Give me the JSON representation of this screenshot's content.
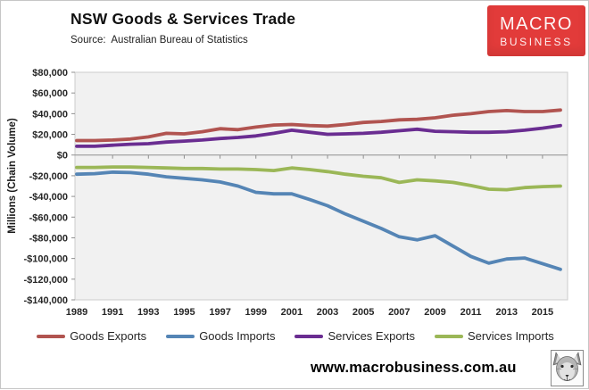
{
  "page": {
    "title": "NSW Goods & Services Trade",
    "source": "Source:  Australian Bureau of Statistics",
    "footer_url": "www.macrobusiness.com.au"
  },
  "logo": {
    "line1": "MACRO",
    "line2": "BUSINESS",
    "bg_color": "#E23B3A",
    "text_color": "#FFFFFF"
  },
  "chart_data": {
    "type": "line",
    "title": "NSW Goods & Services Trade",
    "xlabel": "",
    "ylabel": "Millions (Chain Volume)",
    "grid": false,
    "legend_position": "bottom",
    "plot_bg_color": "#F1F1F1",
    "axis_color": "#8F8F8F",
    "xlim": [
      1988.9,
      2016.4
    ],
    "ylim": [
      -140000,
      80000
    ],
    "x_tick_labels": [
      "1989",
      "1991",
      "1993",
      "1995",
      "1997",
      "1999",
      "2001",
      "2003",
      "2005",
      "2007",
      "2009",
      "2011",
      "2013",
      "2015"
    ],
    "x_tick_years": [
      1989,
      1991,
      1993,
      1995,
      1997,
      1999,
      2001,
      2003,
      2005,
      2007,
      2009,
      2011,
      2013,
      2015
    ],
    "y_ticks": [
      {
        "value": 80000,
        "label": "$80,000"
      },
      {
        "value": 60000,
        "label": "$60,000"
      },
      {
        "value": 40000,
        "label": "$40,000"
      },
      {
        "value": 20000,
        "label": "$20,000"
      },
      {
        "value": 0,
        "label": "$0"
      },
      {
        "value": -20000,
        "label": "-$20,000"
      },
      {
        "value": -40000,
        "label": "-$40,000"
      },
      {
        "value": -60000,
        "label": "-$60,000"
      },
      {
        "value": -80000,
        "label": "-$80,000"
      },
      {
        "value": -100000,
        "label": "-$100,000"
      },
      {
        "value": -120000,
        "label": "-$120,000"
      },
      {
        "value": -140000,
        "label": "-$140,000"
      }
    ],
    "x": [
      1989,
      1990,
      1991,
      1992,
      1993,
      1994,
      1995,
      1996,
      1997,
      1998,
      1999,
      2000,
      2001,
      2002,
      2003,
      2004,
      2005,
      2006,
      2007,
      2008,
      2009,
      2010,
      2011,
      2012,
      2013,
      2014,
      2015,
      2016
    ],
    "series": [
      {
        "name": "Goods Exports",
        "color": "#B15450",
        "values": [
          14000,
          14000,
          14500,
          15500,
          17500,
          21000,
          20500,
          22500,
          25500,
          24500,
          27000,
          29000,
          29500,
          28500,
          28000,
          29500,
          31500,
          32500,
          34000,
          34500,
          36000,
          38500,
          40000,
          42000,
          43000,
          42000,
          42000,
          43500
        ]
      },
      {
        "name": "Goods Imports",
        "color": "#5585B5",
        "values": [
          -18500,
          -18000,
          -16500,
          -17000,
          -18500,
          -21000,
          -22500,
          -24000,
          -26000,
          -30000,
          -36000,
          -37500,
          -37500,
          -43000,
          -49000,
          -57000,
          -64000,
          -71000,
          -79000,
          -82000,
          -78000,
          -88000,
          -98000,
          -104500,
          -100500,
          -99500,
          -105000,
          -110500
        ]
      },
      {
        "name": "Services Exports",
        "color": "#6A2D91",
        "values": [
          8500,
          8500,
          9500,
          10500,
          11000,
          12500,
          13500,
          14500,
          16000,
          17000,
          18500,
          21000,
          24000,
          22000,
          20000,
          20500,
          21000,
          22000,
          23500,
          25000,
          23000,
          22500,
          22000,
          22000,
          22500,
          24000,
          26000,
          28500
        ]
      },
      {
        "name": "Services Imports",
        "color": "#9BB757",
        "values": [
          -12000,
          -12000,
          -11500,
          -11500,
          -12000,
          -12500,
          -13000,
          -13000,
          -13500,
          -13500,
          -14000,
          -15000,
          -12500,
          -14000,
          -16000,
          -18500,
          -20500,
          -22000,
          -26500,
          -24000,
          -25000,
          -26500,
          -29500,
          -33000,
          -33500,
          -31500,
          -30500,
          -30000
        ]
      }
    ]
  }
}
